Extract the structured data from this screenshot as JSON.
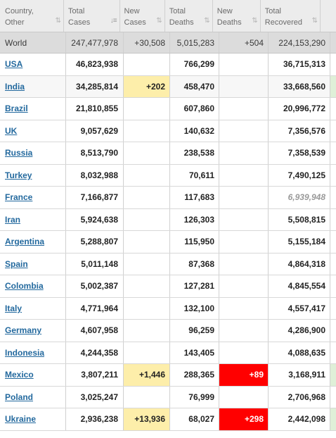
{
  "headers": [
    {
      "line1": "Country,",
      "line2": "Other"
    },
    {
      "line1": "Total",
      "line2": "Cases"
    },
    {
      "line1": "New",
      "line2": "Cases"
    },
    {
      "line1": "Total",
      "line2": "Deaths"
    },
    {
      "line1": "New",
      "line2": "Deaths"
    },
    {
      "line1": "Total",
      "line2": "Recovered"
    }
  ],
  "world": {
    "country": "World",
    "total_cases": "247,477,978",
    "new_cases": "+30,508",
    "total_deaths": "5,015,283",
    "new_deaths": "+504",
    "total_recovered": "224,153,290"
  },
  "rows": [
    {
      "country": "USA",
      "total_cases": "46,823,938",
      "new_cases": "",
      "total_deaths": "766,299",
      "new_deaths": "",
      "total_recovered": "36,715,313"
    },
    {
      "country": "India",
      "total_cases": "34,285,814",
      "new_cases": "+202",
      "total_deaths": "458,470",
      "new_deaths": "",
      "total_recovered": "33,668,560"
    },
    {
      "country": "Brazil",
      "total_cases": "21,810,855",
      "new_cases": "",
      "total_deaths": "607,860",
      "new_deaths": "",
      "total_recovered": "20,996,772"
    },
    {
      "country": "UK",
      "total_cases": "9,057,629",
      "new_cases": "",
      "total_deaths": "140,632",
      "new_deaths": "",
      "total_recovered": "7,356,576"
    },
    {
      "country": "Russia",
      "total_cases": "8,513,790",
      "new_cases": "",
      "total_deaths": "238,538",
      "new_deaths": "",
      "total_recovered": "7,358,539"
    },
    {
      "country": "Turkey",
      "total_cases": "8,032,988",
      "new_cases": "",
      "total_deaths": "70,611",
      "new_deaths": "",
      "total_recovered": "7,490,125"
    },
    {
      "country": "France",
      "total_cases": "7,166,877",
      "new_cases": "",
      "total_deaths": "117,683",
      "new_deaths": "",
      "total_recovered": "6,939,948"
    },
    {
      "country": "Iran",
      "total_cases": "5,924,638",
      "new_cases": "",
      "total_deaths": "126,303",
      "new_deaths": "",
      "total_recovered": "5,508,815"
    },
    {
      "country": "Argentina",
      "total_cases": "5,288,807",
      "new_cases": "",
      "total_deaths": "115,950",
      "new_deaths": "",
      "total_recovered": "5,155,184"
    },
    {
      "country": "Spain",
      "total_cases": "5,011,148",
      "new_cases": "",
      "total_deaths": "87,368",
      "new_deaths": "",
      "total_recovered": "4,864,318"
    },
    {
      "country": "Colombia",
      "total_cases": "5,002,387",
      "new_cases": "",
      "total_deaths": "127,281",
      "new_deaths": "",
      "total_recovered": "4,845,554"
    },
    {
      "country": "Italy",
      "total_cases": "4,771,964",
      "new_cases": "",
      "total_deaths": "132,100",
      "new_deaths": "",
      "total_recovered": "4,557,417"
    },
    {
      "country": "Germany",
      "total_cases": "4,607,958",
      "new_cases": "",
      "total_deaths": "96,259",
      "new_deaths": "",
      "total_recovered": "4,286,900"
    },
    {
      "country": "Indonesia",
      "total_cases": "4,244,358",
      "new_cases": "",
      "total_deaths": "143,405",
      "new_deaths": "",
      "total_recovered": "4,088,635"
    },
    {
      "country": "Mexico",
      "total_cases": "3,807,211",
      "new_cases": "+1,446",
      "total_deaths": "288,365",
      "new_deaths": "+89",
      "total_recovered": "3,168,911"
    },
    {
      "country": "Poland",
      "total_cases": "3,025,247",
      "new_cases": "",
      "total_deaths": "76,999",
      "new_deaths": "",
      "total_recovered": "2,706,968"
    },
    {
      "country": "Ukraine",
      "total_cases": "2,936,238",
      "new_cases": "+13,936",
      "total_deaths": "68,027",
      "new_deaths": "+298",
      "total_recovered": "2,442,098"
    }
  ],
  "colors": {
    "new_cases_highlight": "#fdeeaa",
    "new_deaths_highlight": "#ff0000",
    "link": "#23699e",
    "world_row": "#dcdcdc",
    "header": "#ececec"
  },
  "icons": {
    "sort": "sort-arrows-icon",
    "sort_active": "sort-descending-icon"
  }
}
